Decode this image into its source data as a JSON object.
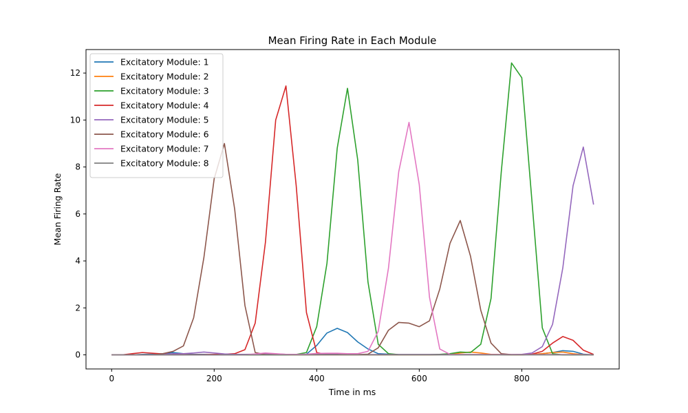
{
  "chart_data": {
    "type": "line",
    "title": "Mean Firing Rate in Each Module",
    "xlabel": "Time in ms",
    "ylabel": "Mean Firing Rate",
    "xlim": [
      -50,
      990
    ],
    "ylim": [
      -0.6,
      13.0
    ],
    "xticks": [
      0,
      200,
      400,
      600,
      800
    ],
    "yticks": [
      0,
      2,
      4,
      6,
      8,
      10,
      12
    ],
    "grid": false,
    "legend_position": "top-left",
    "x": [
      0,
      20,
      40,
      60,
      80,
      100,
      120,
      140,
      160,
      180,
      200,
      220,
      240,
      260,
      280,
      300,
      320,
      340,
      360,
      380,
      400,
      420,
      440,
      460,
      480,
      500,
      520,
      540,
      560,
      580,
      600,
      620,
      640,
      660,
      680,
      700,
      720,
      740,
      760,
      780,
      800,
      820,
      840,
      860,
      880,
      900,
      920,
      940
    ],
    "series": [
      {
        "name": "Excitatory Module: 1",
        "color": "#1f77b4",
        "values": [
          0,
          0,
          0,
          0.02,
          0.03,
          0.05,
          0.1,
          0.05,
          0.02,
          0.02,
          0.01,
          0.01,
          0.01,
          0.01,
          0.01,
          0.01,
          0.01,
          0.01,
          0.01,
          0.03,
          0.4,
          0.93,
          1.13,
          0.95,
          0.55,
          0.25,
          0.05,
          0.03,
          0.01,
          0.01,
          0.01,
          0.01,
          0.01,
          0.01,
          0.01,
          0.01,
          0.01,
          0.01,
          0.01,
          0.01,
          0.01,
          0.02,
          0.05,
          0.1,
          0.18,
          0.15,
          0.03,
          0
        ]
      },
      {
        "name": "Excitatory Module: 2",
        "color": "#ff7f0e",
        "values": [
          0,
          0,
          0,
          0,
          0,
          0,
          0,
          0,
          0,
          0,
          0,
          0,
          0,
          0,
          0,
          0,
          0,
          0,
          0,
          0,
          0,
          0,
          0,
          0,
          0,
          0,
          0,
          0,
          0,
          0,
          0,
          0,
          0.01,
          0.02,
          0.08,
          0.12,
          0.08,
          0.02,
          0.01,
          0,
          0,
          0.02,
          0.05,
          0.1,
          0.12,
          0.05,
          0.01,
          0
        ]
      },
      {
        "name": "Excitatory Module: 3",
        "color": "#2ca02c",
        "values": [
          0,
          0,
          0,
          0,
          0,
          0,
          0,
          0,
          0,
          0,
          0,
          0,
          0,
          0,
          0,
          0,
          0,
          0,
          0.02,
          0.1,
          1.2,
          3.9,
          8.8,
          11.35,
          8.3,
          3.1,
          0.45,
          0.05,
          0.01,
          0.01,
          0.01,
          0.01,
          0.02,
          0.05,
          0.12,
          0.1,
          0.45,
          2.4,
          7.8,
          12.43,
          11.8,
          6.5,
          1.15,
          0.05,
          0,
          0,
          0,
          0
        ]
      },
      {
        "name": "Excitatory Module: 4",
        "color": "#d62728",
        "values": [
          0,
          0,
          0.05,
          0.1,
          0.07,
          0.04,
          0.02,
          0.01,
          0.01,
          0.01,
          0.02,
          0.03,
          0.05,
          0.22,
          1.35,
          4.8,
          10.0,
          11.45,
          7.2,
          1.8,
          0.1,
          0.01,
          0.01,
          0.01,
          0.01,
          0.01,
          0.01,
          0.01,
          0.01,
          0.01,
          0.01,
          0.01,
          0.01,
          0.01,
          0.01,
          0.01,
          0.01,
          0.01,
          0.01,
          0.01,
          0.01,
          0.03,
          0.15,
          0.5,
          0.78,
          0.62,
          0.2,
          0.02
        ]
      },
      {
        "name": "Excitatory Module: 5",
        "color": "#9467bd",
        "values": [
          0,
          0,
          0,
          0,
          0,
          0.02,
          0.05,
          0.05,
          0.08,
          0.12,
          0.08,
          0.04,
          0.02,
          0.02,
          0.03,
          0.05,
          0.04,
          0.02,
          0.01,
          0.01,
          0.02,
          0.02,
          0.02,
          0.01,
          0.01,
          0.01,
          0.01,
          0.01,
          0.01,
          0.01,
          0.01,
          0.01,
          0.01,
          0.01,
          0.01,
          0.01,
          0.01,
          0.01,
          0.01,
          0.01,
          0.02,
          0.08,
          0.35,
          1.3,
          3.7,
          7.2,
          8.85,
          6.4
        ]
      },
      {
        "name": "Excitatory Module: 6",
        "color": "#8c564b",
        "values": [
          0,
          0,
          0,
          0,
          0,
          0.05,
          0.15,
          0.38,
          1.58,
          4.15,
          7.5,
          9.0,
          6.2,
          2.1,
          0.1,
          0.01,
          0.01,
          0.01,
          0.01,
          0.01,
          0.01,
          0.01,
          0.01,
          0.01,
          0.01,
          0.03,
          0.3,
          1.05,
          1.38,
          1.35,
          1.2,
          1.45,
          2.8,
          4.75,
          5.72,
          4.2,
          1.9,
          0.5,
          0.05,
          0.01,
          0.01,
          0.01,
          0.01,
          0.01,
          0.01,
          0.01,
          0.01,
          0.01
        ]
      },
      {
        "name": "Excitatory Module: 7",
        "color": "#e377c2",
        "values": [
          0,
          0,
          0,
          0,
          0,
          0,
          0,
          0,
          0,
          0,
          0,
          0,
          0,
          0,
          0.04,
          0.08,
          0.05,
          0.02,
          0.02,
          0.03,
          0.06,
          0.07,
          0.07,
          0.05,
          0.05,
          0.15,
          1.0,
          3.7,
          7.8,
          9.9,
          7.25,
          2.45,
          0.25,
          0.02,
          0.01,
          0.01,
          0.01,
          0.01,
          0.01,
          0.01,
          0.01,
          0.01,
          0.01,
          0.01,
          0.01,
          0.01,
          0.01,
          0
        ]
      },
      {
        "name": "Excitatory Module: 8",
        "color": "#7f7f7f",
        "values": [
          0,
          0,
          0,
          0,
          0,
          0,
          0,
          0,
          0,
          0,
          0,
          0,
          0,
          0,
          0,
          0,
          0,
          0,
          0,
          0,
          0,
          0,
          0,
          0,
          0,
          0,
          0,
          0,
          0,
          0,
          0,
          0,
          0,
          0,
          0,
          0,
          0,
          0,
          0,
          0,
          0,
          0,
          0,
          0,
          0,
          0,
          0,
          0
        ]
      }
    ]
  }
}
